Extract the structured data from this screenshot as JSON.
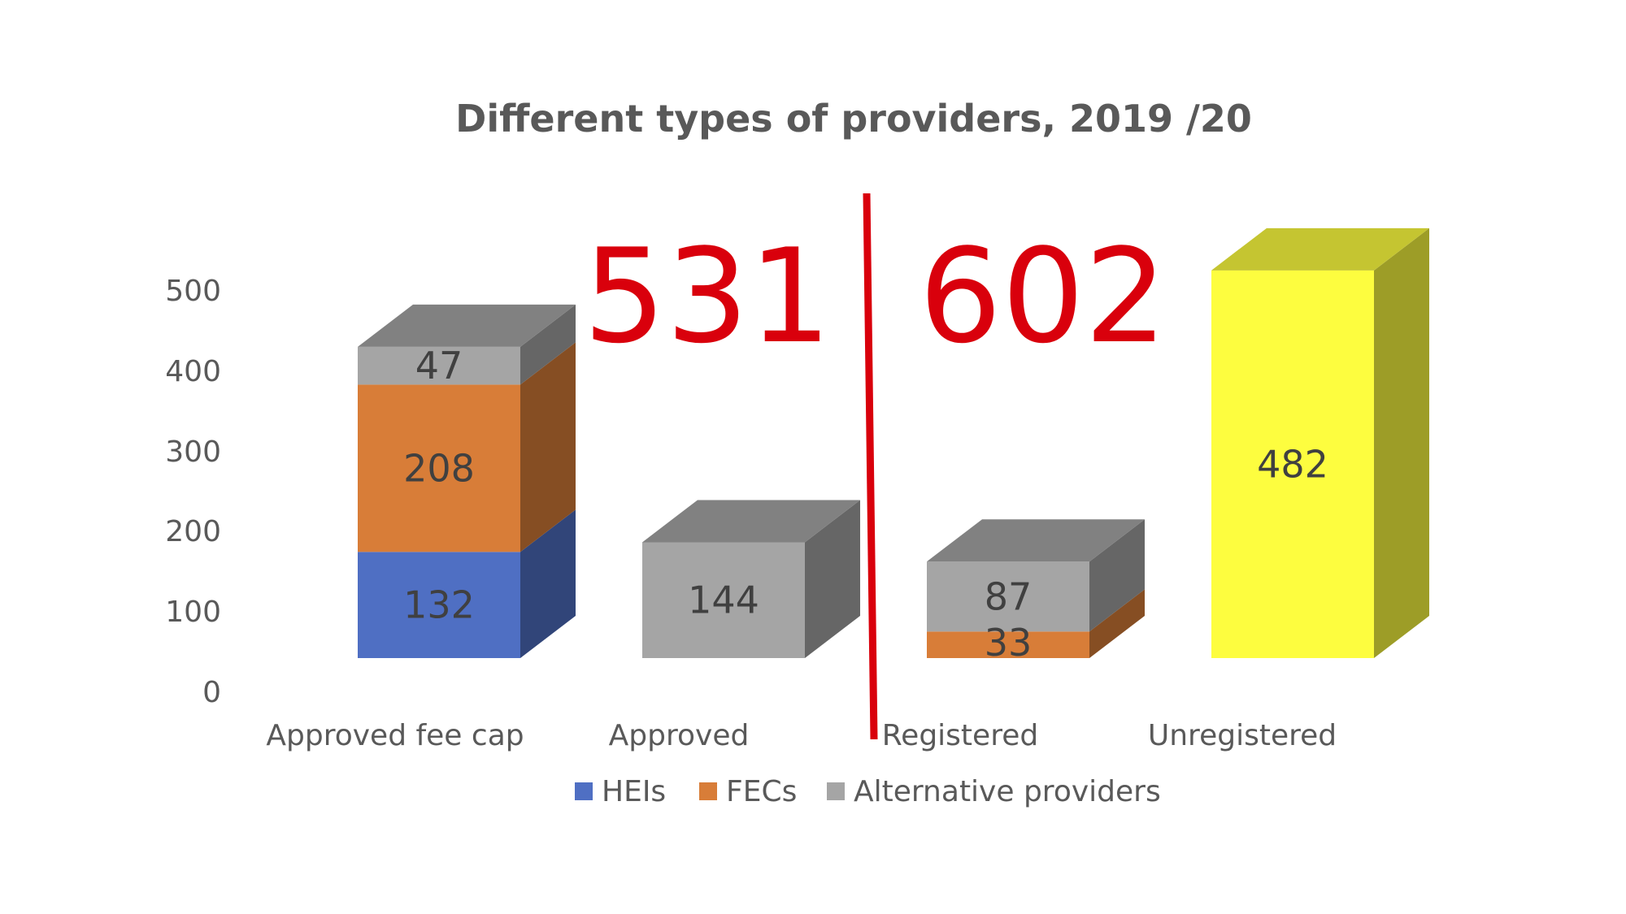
{
  "chart_data": {
    "type": "bar",
    "stacked": true,
    "three_d": true,
    "title": "Different types of providers, 2019 /20",
    "categories": [
      "Approved fee cap",
      "Approved",
      "Registered",
      "Unregistered"
    ],
    "y_ticks": [
      "0",
      "100",
      "200",
      "300",
      "400",
      "500"
    ],
    "ylim": [
      0,
      500
    ],
    "grid": false,
    "legend_position": "bottom",
    "series": [
      {
        "name": "HEIs",
        "color": "#4f6fc3",
        "values": [
          132,
          0,
          0,
          0
        ]
      },
      {
        "name": "FECs",
        "color": "#d87d38",
        "values": [
          208,
          0,
          33,
          0
        ]
      },
      {
        "name": "Alternative providers",
        "color": "#a5a5a5",
        "values": [
          47,
          144,
          87,
          0
        ]
      }
    ],
    "extra_bars": [
      {
        "category": "Unregistered",
        "value": 482,
        "color": "#fdfd3f"
      }
    ],
    "data_labels": [
      [
        "132",
        "208",
        "47"
      ],
      [
        "144"
      ],
      [
        "33",
        "87"
      ],
      [
        "482"
      ]
    ],
    "annotations": {
      "total_left": "531",
      "total_right": "602",
      "color": "#d9000c"
    }
  }
}
